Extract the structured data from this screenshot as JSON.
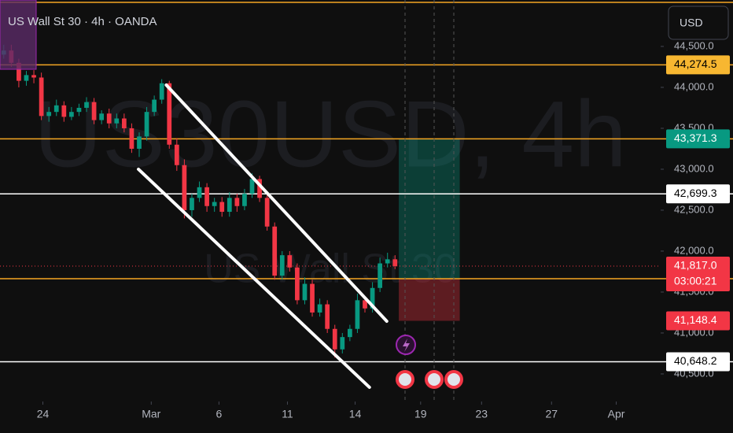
{
  "chart_data": {
    "type": "candlestick",
    "title": "US Wall St 30 · 4h · OANDA",
    "watermark": "US30USD, 4h",
    "watermark_sub": "US Wall St 30",
    "currency": "USD",
    "up_color": "#089981",
    "down_color": "#f23645",
    "open": [
      44400,
      44450,
      44300,
      44080,
      44150,
      44120,
      43650,
      43700,
      43780,
      43640,
      43700,
      43750,
      43820,
      43600,
      43680,
      43560,
      43620,
      43500,
      43250,
      43400,
      43700,
      43850,
      44050,
      43300,
      43050,
      42500,
      42650,
      42780,
      42550,
      42600,
      42480,
      42650,
      42550,
      42700,
      42880,
      42650,
      42300,
      41700,
      41950,
      41800,
      41400,
      41600,
      41250,
      41350,
      41050,
      40800,
      40950,
      41050,
      41400,
      41300,
      41550,
      41850,
      41900
    ],
    "high": [
      44520,
      44520,
      44350,
      44200,
      44210,
      44180,
      43760,
      43850,
      43830,
      43760,
      43800,
      43880,
      43870,
      43720,
      43740,
      43680,
      43680,
      43560,
      43450,
      43760,
      43900,
      44100,
      44080,
      43380,
      43120,
      42700,
      42850,
      42830,
      42650,
      42660,
      42720,
      42700,
      42760,
      42950,
      42920,
      42700,
      42350,
      42000,
      42000,
      41850,
      41680,
      41650,
      41420,
      41400,
      41100,
      41000,
      41100,
      41480,
      41450,
      41620,
      41920,
      41980,
      41950
    ],
    "low": [
      44350,
      44250,
      44000,
      44020,
      44050,
      43600,
      43580,
      43650,
      43580,
      43600,
      43650,
      43700,
      43550,
      43550,
      43500,
      43500,
      43450,
      43200,
      43150,
      43350,
      43650,
      43800,
      43250,
      42980,
      42400,
      42420,
      42600,
      42480,
      42480,
      42420,
      42420,
      42480,
      42500,
      42650,
      42600,
      42250,
      41650,
      41650,
      41750,
      41350,
      41350,
      41200,
      41200,
      41000,
      40700,
      40750,
      40900,
      41000,
      41250,
      41250,
      41500,
      41800,
      41780
    ],
    "close": [
      44450,
      44300,
      44080,
      44150,
      44120,
      43650,
      43700,
      43780,
      43640,
      43700,
      43750,
      43820,
      43600,
      43680,
      43560,
      43620,
      43500,
      43250,
      43400,
      43700,
      43850,
      44050,
      43300,
      43050,
      42500,
      42650,
      42780,
      42550,
      42600,
      42480,
      42650,
      42550,
      42700,
      42880,
      42650,
      42300,
      41700,
      41950,
      41800,
      41400,
      41600,
      41250,
      41350,
      41050,
      40800,
      40950,
      41050,
      41400,
      41300,
      41550,
      41850,
      41900,
      41817
    ],
    "xlim": [
      -0.5,
      87.3
    ],
    "xticks": [
      {
        "value": 5.2,
        "label": "24"
      },
      {
        "value": 19.6,
        "label": "Mar"
      },
      {
        "value": 28.6,
        "label": "6"
      },
      {
        "value": 37.7,
        "label": "11"
      },
      {
        "value": 46.7,
        "label": "14"
      },
      {
        "value": 55.4,
        "label": "19"
      },
      {
        "value": 63.5,
        "label": "23"
      },
      {
        "value": 72.8,
        "label": "27"
      },
      {
        "value": 81.4,
        "label": "Apr"
      }
    ],
    "ylim": [
      40163,
      45067
    ],
    "yticks": [
      {
        "value": 40500,
        "label": "40,500.0"
      },
      {
        "value": 41000,
        "label": "41,000.0"
      },
      {
        "value": 41500,
        "label": "41,500.0"
      },
      {
        "value": 42000,
        "label": "42,000.0"
      },
      {
        "value": 42500,
        "label": "42,500.0"
      },
      {
        "value": 43000,
        "label": "43,000.0"
      },
      {
        "value": 43500,
        "label": "43,500.0"
      },
      {
        "value": 44000,
        "label": "44,000.0"
      },
      {
        "value": 44500,
        "label": "44,500.0"
      }
    ],
    "levels": [
      {
        "value": 45038,
        "color": "#f5a623"
      },
      {
        "value": 44274.5,
        "label": "44,274.5",
        "color": "#f5a623",
        "label_color": "#f7b731",
        "text_color": "#000000"
      },
      {
        "value": 43371.3,
        "label": "43,371.3",
        "color": "#f5a623",
        "label_color": "#089981",
        "text_color": "#ffffff"
      },
      {
        "value": 42699.3,
        "label": "42,699.3",
        "color": "#ffffff",
        "label_color": "#ffffff",
        "text_color": "#000000"
      },
      {
        "value": 41663,
        "color": "#f5a623"
      },
      {
        "value": 41148.4,
        "label": "41,148.4",
        "label_color": "#f23645",
        "text_color": "#ffffff"
      },
      {
        "value": 40648.2,
        "label": "40,648.2",
        "color": "#ffffff",
        "label_color": "#ffffff",
        "text_color": "#000000"
      }
    ],
    "last": {
      "value": 41817.0,
      "label": "41,817.0",
      "countdown": "03:00:21",
      "color": "#f23645"
    },
    "position": {
      "start": 52.5,
      "end": 60.6,
      "entry": 41663,
      "target": 43371.3,
      "stop": 41148.4
    },
    "trendlines": [
      {
        "x": [
          21.6,
          50.9
        ],
        "y": [
          44029,
          41144
        ]
      },
      {
        "x": [
          17.9,
          48.6
        ],
        "y": [
          43000,
          40337
        ]
      }
    ]
  }
}
